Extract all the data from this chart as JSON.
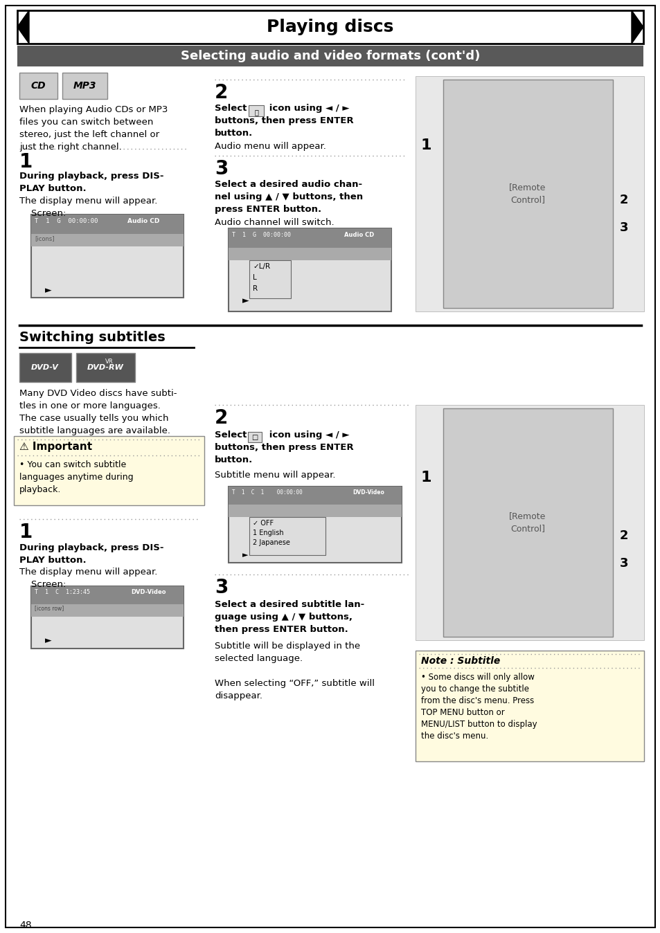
{
  "title": "Playing discs",
  "subtitle": "Selecting audio and video formats (cont'd)",
  "page_number": "48",
  "bg_color": "#f0f0f0",
  "subtitle_bg": "#595959",
  "subtitle_fg": "#ffffff",
  "section1_heading": "Switching subtitles",
  "important_title": "⚠ Important",
  "important_text": "• You can switch subtitle\nlanguages anytime during\nplayback.",
  "note_title": "Note : Subtitle",
  "note_text": "• Some discs will only allow\nyou to change the subtitle\nfrom the disc's menu. Press\nTOP MENU button or\nMENU/LIST button to display\nthe disc's menu.",
  "left_col_top_text": "When playing Audio CDs or MP3\nfiles you can switch between\nstereo, just the left channel or\njust the right channel.",
  "step1_left_top_bold": "During playback, press DIS-\nPLAY button.",
  "step1_left_top_normal": "The display menu will appear.\n    Screen:",
  "step2_mid_bold": "Select       icon using ◄ / ►\nbuttons, then press ENTER\nbutton.",
  "step2_mid_normal": "Audio menu will appear.",
  "step3_mid_bold": "Select a desired audio chan-\nnel using ▲ / ▼ buttons, then\npress ENTER button.",
  "step3_mid_normal": "Audio channel will switch.",
  "step1_left_bot_bold": "During playback, press DIS-\nPLAY button.",
  "step1_left_bot_normal": "The display menu will appear.\n    Screen:",
  "step2_bot_bold": "Select       icon using ◄ / ►\nbuttons, then press ENTER\nbutton.",
  "step2_bot_normal": "Subtitle menu will appear.",
  "step3_bot_bold": "Select a desired subtitle lan-\nguage using ▲ / ▼ buttons,\nthen press ENTER button.",
  "step3_bot_normal": "Subtitle will be displayed in the\nselected language.\n\nWhen selecting “OFF,” subtitle will\ndisappear.",
  "many_dvd_text": "Many DVD Video discs have subti-\ntles in one or more languages.\nThe case usually tells you which\nsubtitle languages are available.",
  "dotted_color": "#777777"
}
